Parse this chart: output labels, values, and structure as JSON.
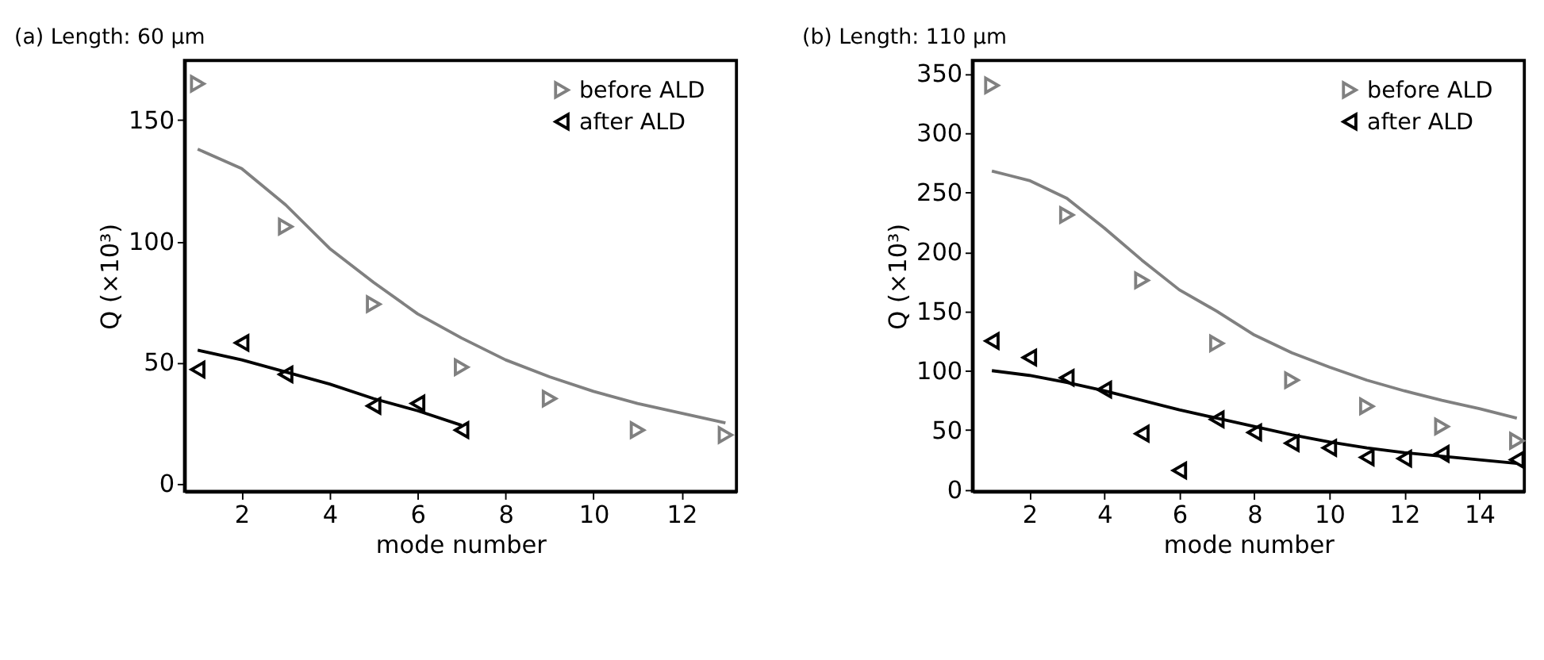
{
  "chart_data": [
    {
      "type": "scatter",
      "title": "Length: 60 µm",
      "annotations": [
        "(a)"
      ],
      "xlabel": "mode number",
      "ylabel": "Q (×10³)",
      "xlim": [
        0.7,
        13.25
      ],
      "ylim": [
        -3.3,
        174.6
      ],
      "xticks": [
        2,
        4,
        6,
        8,
        10,
        12
      ],
      "yticks": [
        0,
        50,
        100,
        150
      ],
      "grid": false,
      "legend": "top right",
      "series": [
        {
          "name": "before ALD",
          "color": "#808080",
          "marker": "triangle-right",
          "x": [
            1,
            3,
            5,
            7,
            9,
            11,
            13
          ],
          "values": [
            165,
            106,
            74,
            48,
            35,
            22,
            20
          ]
        },
        {
          "name": "after ALD",
          "color": "#000000",
          "marker": "triangle-left",
          "x": [
            1,
            2,
            3,
            5,
            6,
            7
          ],
          "values": [
            47,
            58,
            45,
            32,
            33,
            22
          ]
        },
        {
          "color": "#808080",
          "type": "line",
          "marker": "none",
          "line_style": "solid",
          "x": [
            1,
            2,
            3,
            4,
            5,
            6,
            7,
            8,
            9,
            10,
            11,
            12,
            13
          ],
          "values": [
            138,
            130,
            115,
            97,
            83,
            70,
            60,
            51,
            44,
            38,
            33,
            29,
            25
          ]
        },
        {
          "color": "#000000",
          "type": "line",
          "marker": "none",
          "line_style": "solid",
          "x": [
            1,
            2,
            3,
            4,
            5,
            6,
            7
          ],
          "values": [
            55,
            51,
            46,
            41,
            35,
            30,
            24
          ]
        }
      ]
    },
    {
      "type": "scatter",
      "title": "Length: 110 µm",
      "annotations": [
        "(b)"
      ],
      "xlabel": "mode number",
      "ylabel": "Q (×10³)",
      "xlim": [
        0.48,
        15.2
      ],
      "ylim": [
        -1.6,
        361
      ],
      "xticks": [
        2,
        4,
        6,
        8,
        10,
        12,
        14
      ],
      "yticks": [
        0,
        50,
        100,
        150,
        200,
        250,
        300,
        350
      ],
      "grid": false,
      "legend": "top right",
      "series": [
        {
          "name": "before ALD",
          "color": "#808080",
          "marker": "triangle-right",
          "x": [
            1,
            3,
            5,
            7,
            9,
            11,
            13,
            15
          ],
          "values": [
            340,
            231,
            176,
            123,
            92,
            70,
            53,
            41
          ]
        },
        {
          "name": "after ALD",
          "color": "#000000",
          "marker": "triangle-left",
          "x": [
            1,
            2,
            3,
            4,
            5,
            6,
            7,
            8,
            9,
            10,
            11,
            12,
            13,
            15
          ],
          "values": [
            125,
            111,
            94,
            84,
            47,
            16,
            59,
            48,
            39,
            35,
            27,
            26,
            30,
            25
          ]
        },
        {
          "color": "#808080",
          "type": "line",
          "marker": "none",
          "line_style": "solid",
          "x": [
            1,
            2,
            3,
            4,
            5,
            6,
            7,
            8,
            9,
            10,
            11,
            12,
            13,
            14,
            15
          ],
          "values": [
            268,
            260,
            245,
            220,
            193,
            168,
            150,
            130,
            115,
            103,
            92,
            83,
            75,
            68,
            60
          ]
        },
        {
          "color": "#000000",
          "type": "line",
          "marker": "none",
          "line_style": "solid",
          "x": [
            1,
            2,
            3,
            4,
            5,
            6,
            7,
            8,
            9,
            10,
            11,
            12,
            13,
            14,
            15
          ],
          "values": [
            100,
            96,
            90,
            83,
            75,
            67,
            60,
            53,
            46,
            40,
            35,
            31,
            28,
            25,
            22
          ]
        }
      ]
    }
  ]
}
